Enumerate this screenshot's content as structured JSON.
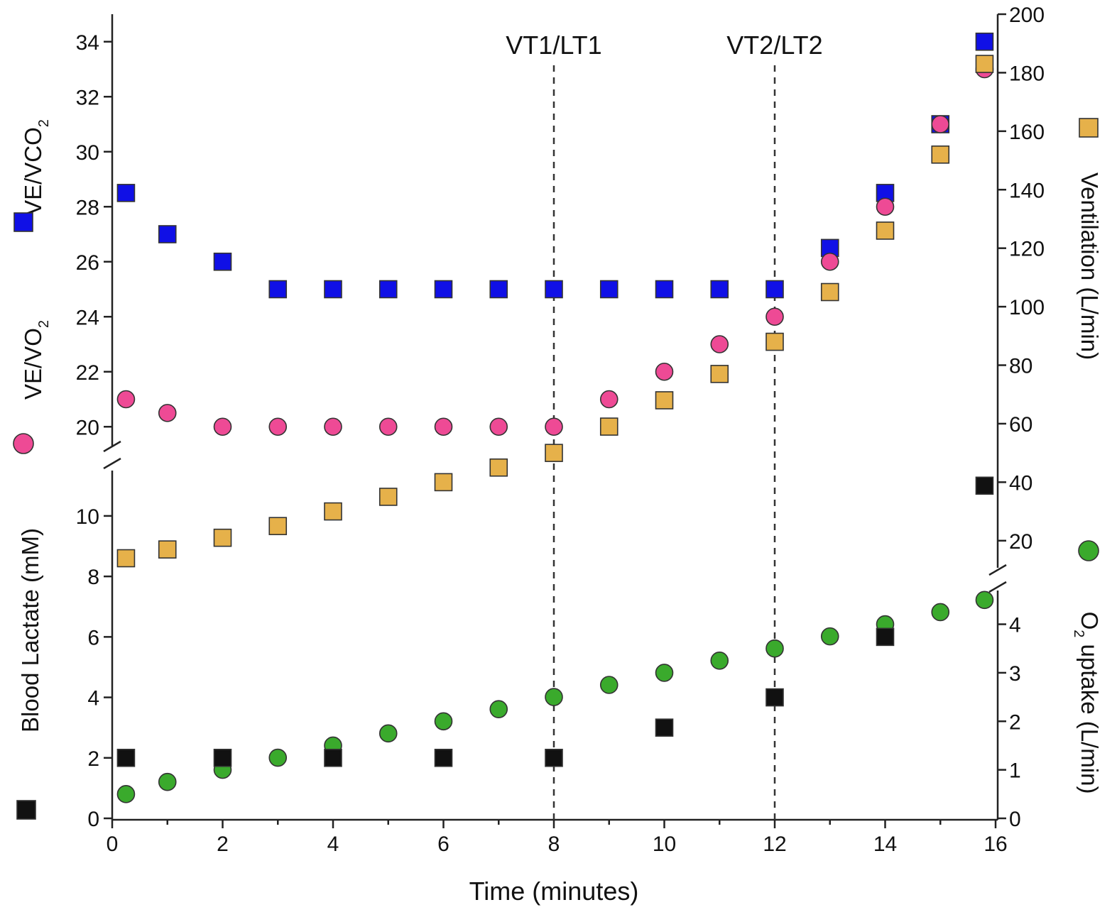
{
  "chart_data": {
    "type": "scatter",
    "title": "",
    "x": {
      "label": "Time (minutes)",
      "range": [
        0,
        16
      ],
      "ticks": [
        "0",
        "2",
        "4",
        "6",
        "8",
        "10",
        "12",
        "14",
        "16"
      ]
    },
    "left_axis": {
      "upper": {
        "range": [
          19,
          35
        ],
        "ticks": [
          "20",
          "22",
          "24",
          "26",
          "28",
          "30",
          "32",
          "34"
        ],
        "labels": [
          {
            "text": "VE/VCO",
            "sub": "2",
            "marker": "square",
            "color": "#1010e6"
          },
          {
            "text": "VE/VO",
            "sub": "2",
            "marker": "circle",
            "color": "#ee4a95"
          }
        ]
      },
      "lower": {
        "label": "Blood Lactate (mM)",
        "marker": "square",
        "color": "#111111",
        "range": [
          0,
          11.5
        ],
        "ticks": [
          "0",
          "2",
          "4",
          "6",
          "8",
          "10"
        ]
      }
    },
    "right_axis": {
      "upper": {
        "label": "Ventilation (L/min)",
        "marker": "square",
        "color": "#e6b14a",
        "range": [
          10,
          200
        ],
        "ticks": [
          "20",
          "40",
          "60",
          "80",
          "100",
          "120",
          "140",
          "160",
          "180",
          "200"
        ]
      },
      "lower": {
        "label": "O",
        "sub": "2",
        "label_rest": " uptake (L/min)",
        "marker": "circle",
        "color": "#3aaa2c",
        "range": [
          0,
          4.9
        ],
        "ticks": [
          "0",
          "1",
          "2",
          "3",
          "4"
        ]
      }
    },
    "annotations": [
      {
        "text": "VT1/LT1",
        "x": 8
      },
      {
        "text": "VT2/LT2",
        "x": 12
      }
    ],
    "series": [
      {
        "name": "VE/VCO2",
        "axis": "left_upper",
        "marker": "square",
        "color": "#1010e6",
        "points": [
          [
            0.25,
            28.5
          ],
          [
            1,
            27
          ],
          [
            2,
            26
          ],
          [
            3,
            25
          ],
          [
            4,
            25
          ],
          [
            5,
            25
          ],
          [
            6,
            25
          ],
          [
            7,
            25
          ],
          [
            8,
            25
          ],
          [
            9,
            25
          ],
          [
            10,
            25
          ],
          [
            11,
            25
          ],
          [
            12,
            25
          ],
          [
            13,
            26.5
          ],
          [
            14,
            28.5
          ],
          [
            15,
            31
          ],
          [
            15.8,
            34
          ]
        ]
      },
      {
        "name": "VE/VO2",
        "axis": "left_upper",
        "marker": "circle",
        "color": "#ee4a95",
        "points": [
          [
            0.25,
            21
          ],
          [
            1,
            20.5
          ],
          [
            2,
            20
          ],
          [
            3,
            20
          ],
          [
            4,
            20
          ],
          [
            5,
            20
          ],
          [
            6,
            20
          ],
          [
            7,
            20
          ],
          [
            8,
            20
          ],
          [
            9,
            21
          ],
          [
            10,
            22
          ],
          [
            11,
            23
          ],
          [
            12,
            24
          ],
          [
            13,
            26
          ],
          [
            14,
            28
          ],
          [
            15,
            31
          ],
          [
            15.8,
            33
          ]
        ]
      },
      {
        "name": "Ventilation",
        "axis": "right_upper",
        "marker": "square",
        "color": "#e6b14a",
        "points": [
          [
            0.25,
            14
          ],
          [
            1,
            17
          ],
          [
            2,
            21
          ],
          [
            3,
            25
          ],
          [
            4,
            30
          ],
          [
            5,
            35
          ],
          [
            6,
            40
          ],
          [
            7,
            45
          ],
          [
            8,
            50
          ],
          [
            9,
            59
          ],
          [
            10,
            68
          ],
          [
            11,
            77
          ],
          [
            12,
            88
          ],
          [
            13,
            105
          ],
          [
            14,
            126
          ],
          [
            15,
            152
          ],
          [
            15.8,
            183
          ]
        ]
      },
      {
        "name": "O2 uptake",
        "axis": "right_lower",
        "marker": "circle",
        "color": "#3aaa2c",
        "points": [
          [
            0.25,
            0.5
          ],
          [
            1,
            0.75
          ],
          [
            2,
            1.0
          ],
          [
            3,
            1.25
          ],
          [
            4,
            1.5
          ],
          [
            5,
            1.75
          ],
          [
            6,
            2.0
          ],
          [
            7,
            2.25
          ],
          [
            8,
            2.5
          ],
          [
            9,
            2.75
          ],
          [
            10,
            3.0
          ],
          [
            11,
            3.25
          ],
          [
            12,
            3.5
          ],
          [
            13,
            3.75
          ],
          [
            14,
            4.0
          ],
          [
            15,
            4.25
          ],
          [
            15.8,
            4.5
          ]
        ]
      },
      {
        "name": "Blood Lactate",
        "axis": "left_lower",
        "marker": "square",
        "color": "#111111",
        "points": [
          [
            0.25,
            2
          ],
          [
            2,
            2
          ],
          [
            4,
            2
          ],
          [
            6,
            2
          ],
          [
            8,
            2
          ],
          [
            10,
            3
          ],
          [
            12,
            4
          ],
          [
            14,
            6
          ],
          [
            15.8,
            11
          ]
        ]
      }
    ]
  }
}
